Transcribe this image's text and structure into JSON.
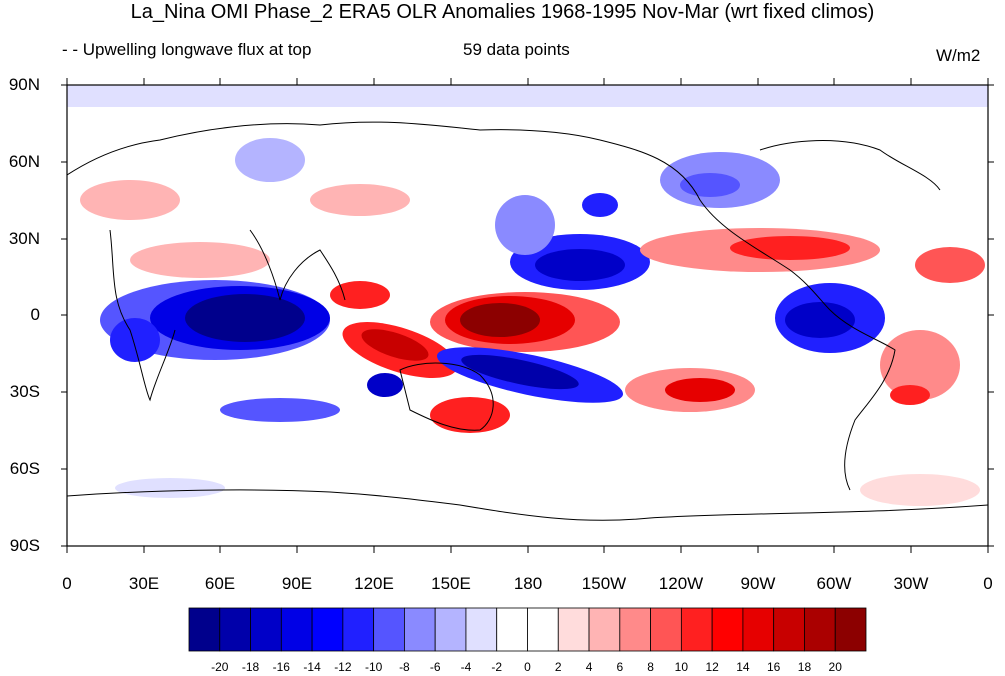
{
  "title": "La_Nina OMI Phase_2 ERA5 OLR Anomalies 1968-1995 Nov-Mar (wrt fixed climos)",
  "subtitle_left": "- - Upwelling longwave flux at top",
  "subtitle_center": "59 data points",
  "units": "W/m2",
  "lat_labels": [
    "90N",
    "60N",
    "30N",
    "0",
    "30S",
    "60S",
    "90S"
  ],
  "lon_labels": [
    "0",
    "30E",
    "60E",
    "90E",
    "120E",
    "150E",
    "180",
    "150W",
    "120W",
    "90W",
    "60W",
    "30W",
    "0"
  ],
  "colorbar": {
    "labels": [
      "-20",
      "-18",
      "-16",
      "-14",
      "-12",
      "-10",
      "-8",
      "-6",
      "-4",
      "-2",
      "0",
      "2",
      "4",
      "6",
      "8",
      "10",
      "12",
      "14",
      "16",
      "18",
      "20"
    ],
    "colors": [
      "#00008c",
      "#0000aa",
      "#0000c8",
      "#0000e6",
      "#0000ff",
      "#2020ff",
      "#5555ff",
      "#8a8aff",
      "#b4b4ff",
      "#e0e0ff",
      "#ffffff",
      "#ffffff",
      "#ffdcdc",
      "#ffb4b4",
      "#ff8a8a",
      "#ff5555",
      "#ff2020",
      "#ff0000",
      "#e60000",
      "#c80000",
      "#aa0000",
      "#8c0000"
    ]
  }
}
